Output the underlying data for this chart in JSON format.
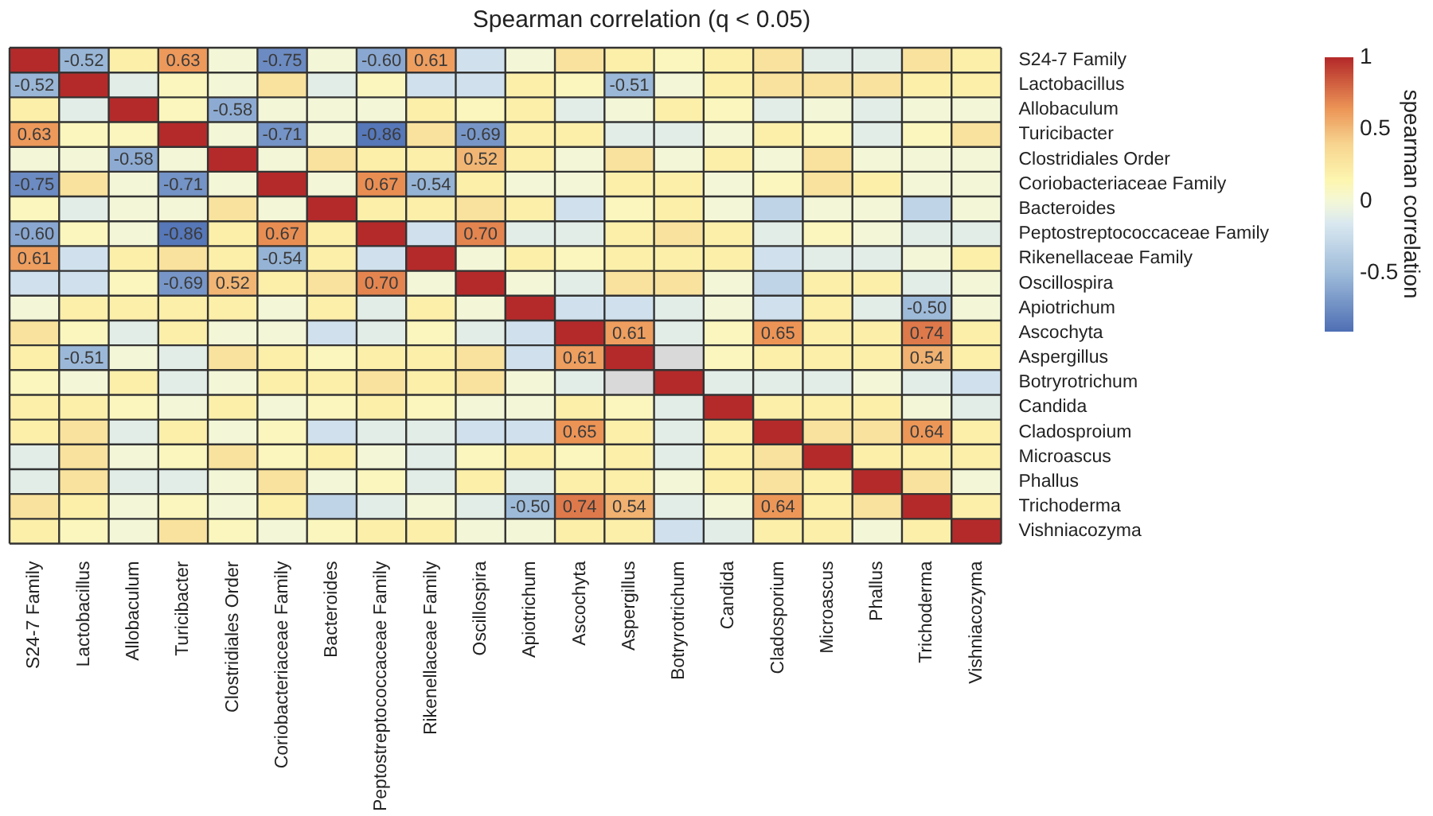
{
  "chart_data": {
    "type": "heatmap",
    "title": "Spearman correlation (q < 0.05)",
    "clabel": "spearman correlation",
    "categories": [
      "S24-7 Family",
      "Lactobacillus",
      "Allobaculum",
      "Turicibacter",
      "Clostridiales Order",
      "Coriobacteriaceae Family",
      "Bacteroides",
      "Peptostreptococcaceae Family",
      "Rikenellaceae Family",
      "Oscillospira",
      "Apiotrichum",
      "Ascochyta",
      "Aspergillus",
      "Botryrotrichum",
      "Candida",
      "Cladosporium",
      "Microascus",
      "Phallus",
      "Trichoderma",
      "Vishniacozyma"
    ],
    "y_categories": [
      "S24-7 Family",
      "Lactobacillus",
      "Allobaculum",
      "Turicibacter",
      "Clostridiales Order",
      "Coriobacteriaceae Family",
      "Bacteroides",
      "Peptostreptococcaceae Family",
      "Rikenellaceae Family",
      "Oscillospira",
      "Apiotrichum",
      "Ascochyta",
      "Aspergillus",
      "Botryrotrichum",
      "Candida",
      "Cladosproium",
      "Microascus",
      "Phallus",
      "Trichoderma",
      "Vishniacozyma"
    ],
    "cells": [
      [
        1,
        -0.52,
        0.2,
        0.63,
        0,
        -0.75,
        0,
        -0.6,
        0.61,
        -0.2,
        0,
        0.3,
        0.2,
        0.1,
        0.2,
        0.3,
        -0.1,
        -0.1,
        0.3,
        0.2
      ],
      [
        -0.52,
        1,
        -0.1,
        0.1,
        0,
        0.3,
        -0.1,
        0.1,
        -0.2,
        -0.2,
        0.2,
        0.1,
        -0.51,
        0,
        0.2,
        0.3,
        0.3,
        0.3,
        0.2,
        0.2
      ],
      [
        0.2,
        -0.1,
        1,
        0.1,
        -0.58,
        0,
        0,
        0,
        0.2,
        0.1,
        0.2,
        -0.1,
        0,
        0.2,
        0.1,
        -0.1,
        0,
        -0.1,
        0,
        0
      ],
      [
        0.63,
        0.1,
        0.1,
        1,
        0,
        -0.71,
        0,
        -0.86,
        0.3,
        -0.69,
        0.2,
        0.2,
        -0.1,
        -0.1,
        0,
        0.2,
        0.1,
        -0.1,
        0.1,
        0.3
      ],
      [
        0,
        0,
        -0.58,
        0,
        1,
        0,
        0.3,
        0.2,
        0.2,
        0.52,
        0.2,
        0,
        0.3,
        0,
        0.2,
        0,
        0.3,
        0,
        0,
        0
      ],
      [
        -0.75,
        0.3,
        0,
        -0.71,
        0,
        1,
        0,
        0.67,
        -0.54,
        0.2,
        0,
        0,
        0.2,
        0.2,
        0,
        0.1,
        0.3,
        0.2,
        0,
        0
      ],
      [
        0.1,
        -0.1,
        0,
        0,
        0.3,
        0,
        1,
        0.2,
        0.2,
        0.3,
        0.2,
        -0.2,
        0.1,
        0.2,
        0,
        -0.3,
        0,
        0,
        -0.3,
        0
      ],
      [
        -0.6,
        0.1,
        0,
        -0.86,
        0.2,
        0.67,
        0.2,
        1,
        -0.2,
        0.7,
        -0.1,
        -0.1,
        0.2,
        0.3,
        0.2,
        -0.1,
        0.1,
        0,
        -0.1,
        -0.1
      ],
      [
        0.61,
        -0.2,
        0.2,
        0.3,
        0.2,
        -0.54,
        0.2,
        -0.2,
        1,
        0,
        0.2,
        0.1,
        0.2,
        0.2,
        0.2,
        -0.2,
        -0.1,
        -0.1,
        0,
        0.2
      ],
      [
        -0.2,
        -0.2,
        0.1,
        -0.69,
        0.52,
        0.2,
        0.3,
        0.7,
        0,
        1,
        0,
        -0.1,
        0.3,
        0.3,
        0,
        -0.3,
        0.2,
        0.2,
        -0.1,
        0
      ],
      [
        0,
        0.2,
        0.2,
        0.2,
        0.2,
        0,
        0.2,
        -0.1,
        0.2,
        0,
        1,
        -0.2,
        -0.2,
        -0.1,
        0,
        -0.2,
        0.2,
        -0.1,
        -0.5,
        0
      ],
      [
        0.3,
        0.1,
        -0.1,
        0.2,
        0,
        0,
        -0.2,
        -0.1,
        0.1,
        -0.1,
        -0.2,
        1,
        0.61,
        -0.1,
        0.1,
        0.65,
        0.2,
        0.2,
        0.74,
        0.2
      ],
      [
        0.2,
        -0.51,
        0,
        -0.1,
        0.3,
        0.2,
        0.1,
        0.2,
        0.2,
        0.3,
        -0.2,
        0.61,
        1,
        null,
        0.1,
        0.2,
        0.2,
        0.2,
        0.54,
        0.2
      ],
      [
        0.1,
        0,
        0.2,
        -0.1,
        0,
        0.2,
        0.2,
        0.3,
        0.2,
        0.3,
        0,
        -0.1,
        null,
        1,
        -0.1,
        -0.1,
        -0.1,
        0,
        -0.1,
        -0.2
      ],
      [
        0.2,
        0.2,
        0.1,
        0,
        0.2,
        0,
        0.1,
        0.2,
        0.1,
        0,
        0,
        0.2,
        0.1,
        -0.1,
        1,
        0.2,
        0.2,
        0.2,
        0,
        -0.1
      ],
      [
        0.2,
        0.3,
        -0.1,
        0.2,
        0,
        0.1,
        -0.2,
        -0.1,
        -0.1,
        -0.2,
        -0.2,
        0.65,
        0.2,
        -0.1,
        0.2,
        1,
        0.3,
        0.3,
        0.64,
        0.2
      ],
      [
        -0.1,
        0.3,
        0,
        0.1,
        0.3,
        0.1,
        0.2,
        0,
        -0.1,
        0.1,
        0.2,
        0.1,
        0.2,
        -0.1,
        0.2,
        0.3,
        1,
        0.2,
        0.2,
        0.2
      ],
      [
        -0.1,
        0.3,
        -0.1,
        -0.1,
        0,
        0.3,
        0,
        0.1,
        -0.1,
        0.2,
        -0.1,
        0.2,
        0.2,
        0,
        0.2,
        0.3,
        0.2,
        1,
        0.3,
        0
      ],
      [
        0.3,
        0.2,
        0,
        0.1,
        0,
        0.2,
        -0.3,
        -0.1,
        0,
        -0.1,
        -0.5,
        0.74,
        0.54,
        -0.1,
        0,
        0.64,
        0.2,
        0.3,
        1,
        0.2
      ],
      [
        0.2,
        0.1,
        0,
        0.3,
        0.1,
        0,
        0.1,
        0.2,
        0.2,
        0,
        0,
        0.2,
        0.2,
        -0.2,
        -0.1,
        0.2,
        0.2,
        0,
        0.2,
        1
      ]
    ],
    "cell_labels": [
      [
        null,
        "-0.52",
        null,
        "0.63",
        null,
        "-0.75",
        null,
        "-0.60",
        "0.61",
        null,
        null,
        null,
        null,
        null,
        null,
        null,
        null,
        null,
        null,
        null
      ],
      [
        "-0.52",
        null,
        null,
        null,
        null,
        null,
        null,
        null,
        null,
        null,
        null,
        null,
        "-0.51",
        null,
        null,
        null,
        null,
        null,
        null,
        null
      ],
      [
        null,
        null,
        null,
        null,
        "-0.58",
        null,
        null,
        null,
        null,
        null,
        null,
        null,
        null,
        null,
        null,
        null,
        null,
        null,
        null,
        null
      ],
      [
        "0.63",
        null,
        null,
        null,
        null,
        "-0.71",
        null,
        "-0.86",
        null,
        "-0.69",
        null,
        null,
        null,
        null,
        null,
        null,
        null,
        null,
        null,
        null
      ],
      [
        null,
        null,
        "-0.58",
        null,
        null,
        null,
        null,
        null,
        null,
        "0.52",
        null,
        null,
        null,
        null,
        null,
        null,
        null,
        null,
        null,
        null
      ],
      [
        "-0.75",
        null,
        null,
        "-0.71",
        null,
        null,
        null,
        "0.67",
        "-0.54",
        null,
        null,
        null,
        null,
        null,
        null,
        null,
        null,
        null,
        null,
        null
      ],
      [
        null,
        null,
        null,
        null,
        null,
        null,
        null,
        null,
        null,
        null,
        null,
        null,
        null,
        null,
        null,
        null,
        null,
        null,
        null,
        null
      ],
      [
        "-0.60",
        null,
        null,
        "-0.86",
        null,
        "0.67",
        null,
        null,
        null,
        "0.70",
        null,
        null,
        null,
        null,
        null,
        null,
        null,
        null,
        null,
        null
      ],
      [
        "0.61",
        null,
        null,
        null,
        null,
        "-0.54",
        null,
        null,
        null,
        null,
        null,
        null,
        null,
        null,
        null,
        null,
        null,
        null,
        null,
        null
      ],
      [
        null,
        null,
        null,
        "-0.69",
        "0.52",
        null,
        null,
        "0.70",
        null,
        null,
        null,
        null,
        null,
        null,
        null,
        null,
        null,
        null,
        null,
        null
      ],
      [
        null,
        null,
        null,
        null,
        null,
        null,
        null,
        null,
        null,
        null,
        null,
        null,
        null,
        null,
        null,
        null,
        null,
        null,
        "-0.50",
        null
      ],
      [
        null,
        null,
        null,
        null,
        null,
        null,
        null,
        null,
        null,
        null,
        null,
        null,
        "0.61",
        null,
        null,
        "0.65",
        null,
        null,
        "0.74",
        null
      ],
      [
        null,
        "-0.51",
        null,
        null,
        null,
        null,
        null,
        null,
        null,
        null,
        null,
        "0.61",
        null,
        null,
        null,
        null,
        null,
        null,
        "0.54",
        null
      ],
      [
        null,
        null,
        null,
        null,
        null,
        null,
        null,
        null,
        null,
        null,
        null,
        null,
        null,
        null,
        null,
        null,
        null,
        null,
        null,
        null
      ],
      [
        null,
        null,
        null,
        null,
        null,
        null,
        null,
        null,
        null,
        null,
        null,
        null,
        null,
        null,
        null,
        null,
        null,
        null,
        null,
        null
      ],
      [
        null,
        null,
        null,
        null,
        null,
        null,
        null,
        null,
        null,
        null,
        null,
        "0.65",
        null,
        null,
        null,
        null,
        null,
        null,
        "0.64",
        null
      ],
      [
        null,
        null,
        null,
        null,
        null,
        null,
        null,
        null,
        null,
        null,
        null,
        null,
        null,
        null,
        null,
        null,
        null,
        null,
        null,
        null
      ],
      [
        null,
        null,
        null,
        null,
        null,
        null,
        null,
        null,
        null,
        null,
        null,
        null,
        null,
        null,
        null,
        null,
        null,
        null,
        null,
        null
      ],
      [
        null,
        null,
        null,
        null,
        null,
        null,
        null,
        null,
        null,
        null,
        "-0.50",
        "0.74",
        "0.54",
        null,
        null,
        "0.64",
        null,
        null,
        null,
        null
      ],
      [
        null,
        null,
        null,
        null,
        null,
        null,
        null,
        null,
        null,
        null,
        null,
        null,
        null,
        null,
        null,
        null,
        null,
        null,
        null,
        null
      ]
    ],
    "clim": [
      -0.9,
      1
    ],
    "cticks": [
      1,
      0.5,
      0,
      -0.5
    ]
  }
}
